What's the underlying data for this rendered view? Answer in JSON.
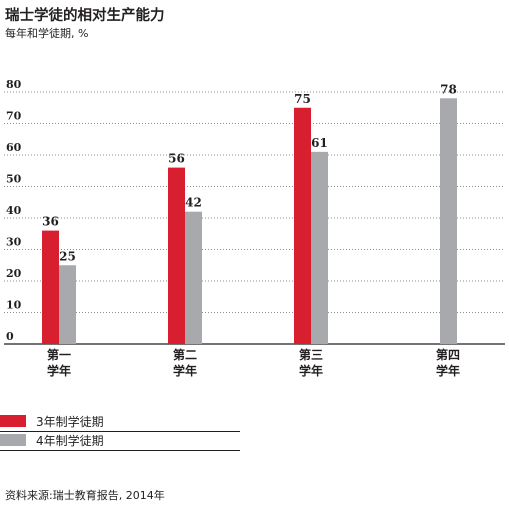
{
  "title": "瑞士学徒的相对生产能力",
  "subtitle": "每年和学徒期, %",
  "source": "资料来源:瑞士教育报告, 2014年",
  "colors": {
    "series1": "#d71f30",
    "series2": "#a7a9ac",
    "axis": "#231f20"
  },
  "chart_data": {
    "type": "bar",
    "title": "瑞士学徒的相对生产能力",
    "subtitle": "每年和学徒期, %",
    "xlabel": "",
    "ylabel": "",
    "ylim": [
      0,
      80
    ],
    "yticks": [
      "0",
      "10",
      "20",
      "30",
      "40",
      "50",
      "60",
      "70",
      "80"
    ],
    "categories": [
      [
        "第一",
        "学年"
      ],
      [
        "第二",
        "学年"
      ],
      [
        "第三",
        "学年"
      ],
      [
        "第四",
        "学年"
      ]
    ],
    "series": [
      {
        "name": "3年制学徒期",
        "values": [
          36,
          56,
          75,
          null
        ]
      },
      {
        "name": "4年制学徒期",
        "values": [
          25,
          42,
          61,
          78
        ]
      }
    ],
    "grid": true,
    "legend": "bottom-left"
  }
}
